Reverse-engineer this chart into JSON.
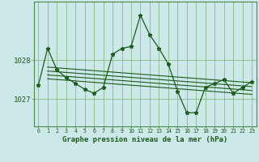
{
  "background_color": "#cce8e8",
  "plot_bg_color": "#cce8e8",
  "grid_color": "#88bb88",
  "line_color": "#1a5c1a",
  "marker_color": "#1a5c1a",
  "title": "Graphe pression niveau de la mer (hPa)",
  "xlabel_ticks": [
    "0",
    "1",
    "2",
    "3",
    "4",
    "5",
    "6",
    "7",
    "8",
    "9",
    "10",
    "11",
    "12",
    "13",
    "14",
    "15",
    "16",
    "17",
    "18",
    "19",
    "20",
    "21",
    "22",
    "23"
  ],
  "yticks": [
    1027,
    1028
  ],
  "ylim": [
    1026.3,
    1029.5
  ],
  "xlim": [
    -0.5,
    23.5
  ],
  "series1": [
    1027.35,
    1028.3,
    1027.75,
    1027.55,
    1027.4,
    1027.25,
    1027.15,
    1027.3,
    1028.15,
    1028.3,
    1028.35,
    1029.15,
    1028.65,
    1028.3,
    1027.9,
    1027.2,
    1026.65,
    1026.65,
    1027.3,
    1027.4,
    1027.5,
    1027.15,
    1027.3,
    1027.45
  ],
  "trend_lines": [
    [
      1027.82,
      1027.42
    ],
    [
      1027.72,
      1027.32
    ],
    [
      1027.62,
      1027.22
    ],
    [
      1027.52,
      1027.12
    ]
  ],
  "trend_x": [
    1,
    23
  ]
}
